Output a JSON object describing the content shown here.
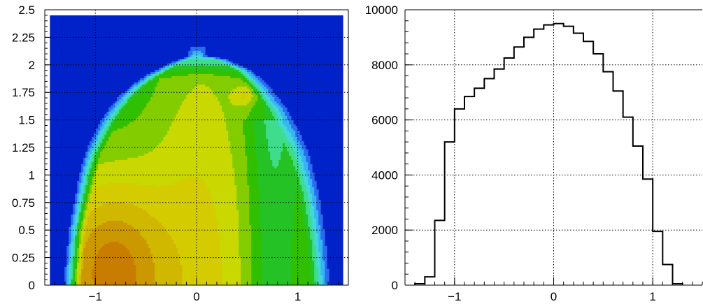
{
  "chart_data": [
    {
      "type": "heatmap",
      "title": "",
      "xlabel": "",
      "ylabel": "",
      "xlim": [
        -1.5,
        1.5
      ],
      "ylim": [
        0,
        2.5
      ],
      "x_ticks": [
        -1,
        0,
        1
      ],
      "x_tick_labels": [
        "−1",
        "0",
        "1"
      ],
      "y_ticks": [
        0,
        0.25,
        0.5,
        0.75,
        1,
        1.25,
        1.5,
        1.75,
        2,
        2.25,
        2.5
      ],
      "y_tick_labels": [
        "0",
        "0.25",
        "0.5",
        "0.75",
        "1",
        "1.25",
        "1.5",
        "1.75",
        "2",
        "2.25",
        "2.5"
      ],
      "grid": true,
      "plot_range": {
        "x": [
          -1.45,
          1.45
        ],
        "y": [
          0,
          2.45
        ]
      },
      "background_color": "#0022c8",
      "colormap": [
        "#0022c8",
        "#2a6cf0",
        "#36b4f4",
        "#42d8d8",
        "#3fdc8c",
        "#25c225",
        "#30c000",
        "#82cc00",
        "#c8d800",
        "#d4cc00",
        "#d0b800",
        "#cc9800",
        "#c87c00",
        "#c45400",
        "#c03000"
      ],
      "support_boundary": [
        [
          0.0,
          -1.23
        ],
        [
          0.1,
          -1.22
        ],
        [
          0.2,
          -1.21
        ],
        [
          0.3,
          -1.2
        ],
        [
          0.4,
          -1.19
        ],
        [
          0.5,
          -1.18
        ],
        [
          0.6,
          -1.16
        ],
        [
          0.7,
          -1.14
        ],
        [
          0.8,
          -1.12
        ],
        [
          0.9,
          -1.1
        ],
        [
          1.0,
          -1.08
        ],
        [
          1.1,
          -1.05
        ],
        [
          1.2,
          -1.02
        ],
        [
          1.3,
          -0.97
        ],
        [
          1.4,
          -0.92
        ],
        [
          1.5,
          -0.86
        ],
        [
          1.6,
          -0.79
        ],
        [
          1.7,
          -0.7
        ],
        [
          1.8,
          -0.59
        ],
        [
          1.9,
          -0.43
        ],
        [
          2.0,
          -0.22
        ],
        [
          2.08,
          0.0
        ],
        [
          2.05,
          0.2
        ],
        [
          1.95,
          0.45
        ],
        [
          1.8,
          0.63
        ],
        [
          1.6,
          0.8
        ],
        [
          1.4,
          0.92
        ],
        [
          1.2,
          1.01
        ],
        [
          1.0,
          1.07
        ],
        [
          0.8,
          1.12
        ],
        [
          0.6,
          1.15
        ],
        [
          0.4,
          1.18
        ],
        [
          0.2,
          1.2
        ],
        [
          0.0,
          1.22
        ]
      ],
      "peaks": [
        {
          "x": -0.85,
          "y": 0.1,
          "level": 14
        },
        {
          "x": 0.48,
          "y": 1.72,
          "level": 11
        }
      ]
    },
    {
      "type": "bar",
      "subtype": "step-histogram",
      "title": "",
      "xlabel": "",
      "ylabel": "",
      "xlim": [
        -1.5,
        1.5
      ],
      "ylim": [
        0,
        10000
      ],
      "x_ticks": [
        -1,
        0,
        1
      ],
      "x_tick_labels": [
        "−1",
        "0",
        "1"
      ],
      "y_ticks": [
        0,
        2000,
        4000,
        6000,
        8000,
        10000
      ],
      "y_tick_labels": [
        "0",
        "2000",
        "4000",
        "6000",
        "8000",
        "10000"
      ],
      "grid": true,
      "bin_edges": [
        -1.4,
        -1.3,
        -1.2,
        -1.1,
        -1.0,
        -0.9,
        -0.8,
        -0.7,
        -0.6,
        -0.5,
        -0.4,
        -0.3,
        -0.2,
        -0.1,
        0.0,
        0.1,
        0.2,
        0.3,
        0.4,
        0.5,
        0.6,
        0.7,
        0.8,
        0.9,
        1.0,
        1.1,
        1.2,
        1.3
      ],
      "values": [
        50,
        300,
        2350,
        5200,
        6400,
        6850,
        7150,
        7500,
        7850,
        8250,
        8650,
        9000,
        9300,
        9450,
        9500,
        9400,
        9150,
        8850,
        8400,
        7750,
        7050,
        6100,
        5050,
        3850,
        1950,
        750,
        50
      ]
    }
  ]
}
